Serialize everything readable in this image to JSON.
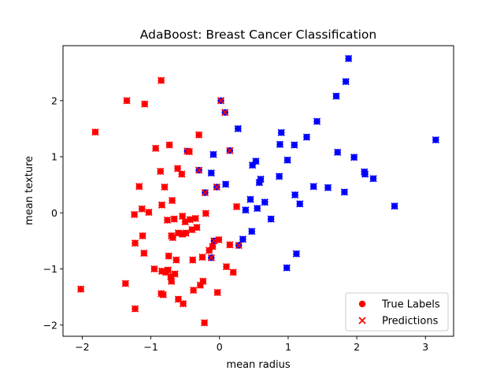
{
  "chart_data": {
    "type": "scatter",
    "title": "AdaBoost: Breast Cancer Classification",
    "xlabel": "mean radius",
    "ylabel": "mean texture",
    "xlim": [
      -2.28,
      3.41
    ],
    "ylim": [
      -2.2,
      2.98
    ],
    "xticks": [
      -2,
      -1,
      0,
      1,
      2,
      3
    ],
    "yticks": [
      -2,
      -1,
      0,
      1,
      2
    ],
    "grid": false,
    "legend_position": "lower-right",
    "colors": {
      "class0": "#ff0000",
      "class1": "#0000ff"
    },
    "legend": [
      {
        "label": "True Labels",
        "marker": "circle"
      },
      {
        "label": "Predictions",
        "marker": "x"
      }
    ],
    "points": [
      {
        "x": -2.02,
        "y": -1.36,
        "true": 0,
        "pred": 0
      },
      {
        "x": -1.81,
        "y": 1.44,
        "true": 0,
        "pred": 0
      },
      {
        "x": -1.35,
        "y": 2.0,
        "true": 0,
        "pred": 0
      },
      {
        "x": -1.37,
        "y": -1.26,
        "true": 0,
        "pred": 0
      },
      {
        "x": -1.23,
        "y": -1.71,
        "true": 0,
        "pred": 0
      },
      {
        "x": -1.24,
        "y": -0.03,
        "true": 0,
        "pred": 0
      },
      {
        "x": -1.23,
        "y": -0.54,
        "true": 0,
        "pred": 0
      },
      {
        "x": -1.17,
        "y": 0.47,
        "true": 0,
        "pred": 0
      },
      {
        "x": -1.13,
        "y": 0.07,
        "true": 0,
        "pred": 0
      },
      {
        "x": -1.12,
        "y": -0.41,
        "true": 0,
        "pred": 0
      },
      {
        "x": -1.1,
        "y": -0.72,
        "true": 0,
        "pred": 0
      },
      {
        "x": -1.09,
        "y": 1.94,
        "true": 0,
        "pred": 0
      },
      {
        "x": -1.03,
        "y": 0.01,
        "true": 0,
        "pred": 0
      },
      {
        "x": -0.95,
        "y": -1.0,
        "true": 0,
        "pred": 0
      },
      {
        "x": -0.93,
        "y": 1.15,
        "true": 0,
        "pred": 0
      },
      {
        "x": -0.85,
        "y": 2.36,
        "true": 0,
        "pred": 0
      },
      {
        "x": -0.86,
        "y": 0.74,
        "true": 0,
        "pred": 0
      },
      {
        "x": -0.84,
        "y": 0.14,
        "true": 0,
        "pred": 0
      },
      {
        "x": -0.85,
        "y": -1.44,
        "true": 0,
        "pred": 0
      },
      {
        "x": -0.82,
        "y": -1.46,
        "true": 0,
        "pred": 0
      },
      {
        "x": -0.84,
        "y": -1.04,
        "true": 0,
        "pred": 0
      },
      {
        "x": -0.8,
        "y": 0.46,
        "true": 0,
        "pred": 0
      },
      {
        "x": -0.78,
        "y": -1.06,
        "true": 0,
        "pred": 0
      },
      {
        "x": -0.76,
        "y": -0.13,
        "true": 0,
        "pred": 0
      },
      {
        "x": -0.75,
        "y": -1.02,
        "true": 0,
        "pred": 0
      },
      {
        "x": -0.73,
        "y": 1.21,
        "true": 0,
        "pred": 0
      },
      {
        "x": -0.74,
        "y": -0.77,
        "true": 0,
        "pred": 0
      },
      {
        "x": -0.71,
        "y": -1.14,
        "true": 0,
        "pred": 0
      },
      {
        "x": -0.7,
        "y": -0.41,
        "true": 0,
        "pred": 0
      },
      {
        "x": -0.68,
        "y": -0.44,
        "true": 0,
        "pred": 0
      },
      {
        "x": -0.7,
        "y": -1.22,
        "true": 0,
        "pred": 0
      },
      {
        "x": -0.69,
        "y": 0.22,
        "true": 0,
        "pred": 0
      },
      {
        "x": -0.66,
        "y": -0.11,
        "true": 0,
        "pred": 0
      },
      {
        "x": -0.65,
        "y": -1.09,
        "true": 0,
        "pred": 0
      },
      {
        "x": -0.63,
        "y": -0.84,
        "true": 0,
        "pred": 0
      },
      {
        "x": -0.61,
        "y": 0.79,
        "true": 0,
        "pred": 0
      },
      {
        "x": -0.6,
        "y": -0.36,
        "true": 0,
        "pred": 0
      },
      {
        "x": -0.6,
        "y": -1.54,
        "true": 0,
        "pred": 0
      },
      {
        "x": -0.55,
        "y": 0.69,
        "true": 0,
        "pred": 0
      },
      {
        "x": -0.54,
        "y": -0.06,
        "true": 0,
        "pred": 0
      },
      {
        "x": -0.54,
        "y": -0.38,
        "true": 0,
        "pred": 0
      },
      {
        "x": -0.53,
        "y": -1.62,
        "true": 0,
        "pred": 0
      },
      {
        "x": -0.5,
        "y": -0.16,
        "true": 0,
        "pred": 0
      },
      {
        "x": -0.49,
        "y": -0.36,
        "true": 0,
        "pred": 0
      },
      {
        "x": -0.47,
        "y": 1.1,
        "true": 1,
        "pred": 0
      },
      {
        "x": -0.44,
        "y": 1.09,
        "true": 0,
        "pred": 0
      },
      {
        "x": -0.43,
        "y": -0.12,
        "true": 0,
        "pred": 0
      },
      {
        "x": -0.4,
        "y": -0.3,
        "true": 0,
        "pred": 0
      },
      {
        "x": -0.39,
        "y": -0.84,
        "true": 0,
        "pred": 0
      },
      {
        "x": -0.38,
        "y": -1.38,
        "true": 0,
        "pred": 0
      },
      {
        "x": -0.35,
        "y": -0.1,
        "true": 0,
        "pred": 0
      },
      {
        "x": -0.33,
        "y": -0.26,
        "true": 0,
        "pred": 0
      },
      {
        "x": -0.3,
        "y": 0.76,
        "true": 1,
        "pred": 0
      },
      {
        "x": -0.3,
        "y": 1.39,
        "true": 0,
        "pred": 0
      },
      {
        "x": -0.28,
        "y": -1.29,
        "true": 0,
        "pred": 0
      },
      {
        "x": -0.25,
        "y": -0.79,
        "true": 0,
        "pred": 0
      },
      {
        "x": -0.24,
        "y": -1.22,
        "true": 0,
        "pred": 0
      },
      {
        "x": -0.22,
        "y": -1.96,
        "true": 0,
        "pred": 0
      },
      {
        "x": -0.21,
        "y": 0.36,
        "true": 1,
        "pred": 0
      },
      {
        "x": -0.2,
        "y": -0.01,
        "true": 0,
        "pred": 0
      },
      {
        "x": -0.15,
        "y": -0.67,
        "true": 0,
        "pred": 0
      },
      {
        "x": -0.12,
        "y": -0.8,
        "true": 1,
        "pred": 0
      },
      {
        "x": -0.1,
        "y": -0.6,
        "true": 0,
        "pred": 0
      },
      {
        "x": -0.08,
        "y": -0.5,
        "true": 1,
        "pred": 0
      },
      {
        "x": -0.04,
        "y": 0.46,
        "true": 1,
        "pred": 0
      },
      {
        "x": -0.03,
        "y": -1.42,
        "true": 0,
        "pred": 0
      },
      {
        "x": -0.01,
        "y": -0.48,
        "true": 0,
        "pred": 0
      },
      {
        "x": 0.02,
        "y": 2.0,
        "true": 1,
        "pred": 0
      },
      {
        "x": 0.08,
        "y": 1.79,
        "true": 1,
        "pred": 0
      },
      {
        "x": 0.1,
        "y": -0.96,
        "true": 0,
        "pred": 0
      },
      {
        "x": 0.15,
        "y": 1.11,
        "true": 1,
        "pred": 0
      },
      {
        "x": 0.15,
        "y": -0.57,
        "true": 0,
        "pred": 0
      },
      {
        "x": 0.2,
        "y": -1.06,
        "true": 0,
        "pred": 0
      },
      {
        "x": 0.25,
        "y": 0.11,
        "true": 0,
        "pred": 0
      },
      {
        "x": 0.28,
        "y": -0.58,
        "true": 1,
        "pred": 0
      },
      {
        "x": -0.12,
        "y": 0.71,
        "true": 1,
        "pred": 1
      },
      {
        "x": -0.09,
        "y": 1.04,
        "true": 1,
        "pred": 1
      },
      {
        "x": 0.09,
        "y": 0.51,
        "true": 1,
        "pred": 1
      },
      {
        "x": 0.27,
        "y": 1.5,
        "true": 1,
        "pred": 1
      },
      {
        "x": 0.34,
        "y": -0.47,
        "true": 1,
        "pred": 1
      },
      {
        "x": 0.38,
        "y": 0.05,
        "true": 1,
        "pred": 1
      },
      {
        "x": 0.45,
        "y": 0.24,
        "true": 1,
        "pred": 1
      },
      {
        "x": 0.47,
        "y": -0.33,
        "true": 1,
        "pred": 1
      },
      {
        "x": 0.48,
        "y": 0.85,
        "true": 1,
        "pred": 1
      },
      {
        "x": 0.53,
        "y": 0.92,
        "true": 1,
        "pred": 1
      },
      {
        "x": 0.55,
        "y": 0.08,
        "true": 1,
        "pred": 1
      },
      {
        "x": 0.58,
        "y": 0.54,
        "true": 1,
        "pred": 1
      },
      {
        "x": 0.6,
        "y": 0.6,
        "true": 1,
        "pred": 1
      },
      {
        "x": 0.66,
        "y": 0.19,
        "true": 1,
        "pred": 1
      },
      {
        "x": 0.75,
        "y": -0.11,
        "true": 1,
        "pred": 1
      },
      {
        "x": 0.87,
        "y": 0.65,
        "true": 1,
        "pred": 1
      },
      {
        "x": 0.88,
        "y": 1.22,
        "true": 1,
        "pred": 1
      },
      {
        "x": 0.9,
        "y": 1.43,
        "true": 1,
        "pred": 1
      },
      {
        "x": 0.98,
        "y": -0.98,
        "true": 1,
        "pred": 1
      },
      {
        "x": 0.99,
        "y": 0.94,
        "true": 1,
        "pred": 1
      },
      {
        "x": 1.09,
        "y": 1.21,
        "true": 1,
        "pred": 1
      },
      {
        "x": 1.1,
        "y": 0.32,
        "true": 1,
        "pred": 1
      },
      {
        "x": 1.12,
        "y": -0.73,
        "true": 1,
        "pred": 1
      },
      {
        "x": 1.17,
        "y": 0.16,
        "true": 1,
        "pred": 1
      },
      {
        "x": 1.27,
        "y": 1.35,
        "true": 1,
        "pred": 1
      },
      {
        "x": 1.37,
        "y": 0.47,
        "true": 1,
        "pred": 1
      },
      {
        "x": 1.42,
        "y": 1.63,
        "true": 1,
        "pred": 1
      },
      {
        "x": 1.58,
        "y": 0.45,
        "true": 1,
        "pred": 1
      },
      {
        "x": 1.7,
        "y": 2.08,
        "true": 1,
        "pred": 1
      },
      {
        "x": 1.72,
        "y": 1.08,
        "true": 1,
        "pred": 1
      },
      {
        "x": 1.82,
        "y": 0.37,
        "true": 1,
        "pred": 1
      },
      {
        "x": 1.84,
        "y": 2.34,
        "true": 1,
        "pred": 1
      },
      {
        "x": 1.88,
        "y": 2.75,
        "true": 1,
        "pred": 1
      },
      {
        "x": 1.96,
        "y": 0.99,
        "true": 1,
        "pred": 1
      },
      {
        "x": 2.11,
        "y": 0.73,
        "true": 1,
        "pred": 1
      },
      {
        "x": 2.12,
        "y": 0.69,
        "true": 1,
        "pred": 1
      },
      {
        "x": 2.24,
        "y": 0.61,
        "true": 1,
        "pred": 1
      },
      {
        "x": 2.55,
        "y": 0.12,
        "true": 1,
        "pred": 1
      },
      {
        "x": 3.15,
        "y": 1.3,
        "true": 1,
        "pred": 1
      }
    ]
  }
}
